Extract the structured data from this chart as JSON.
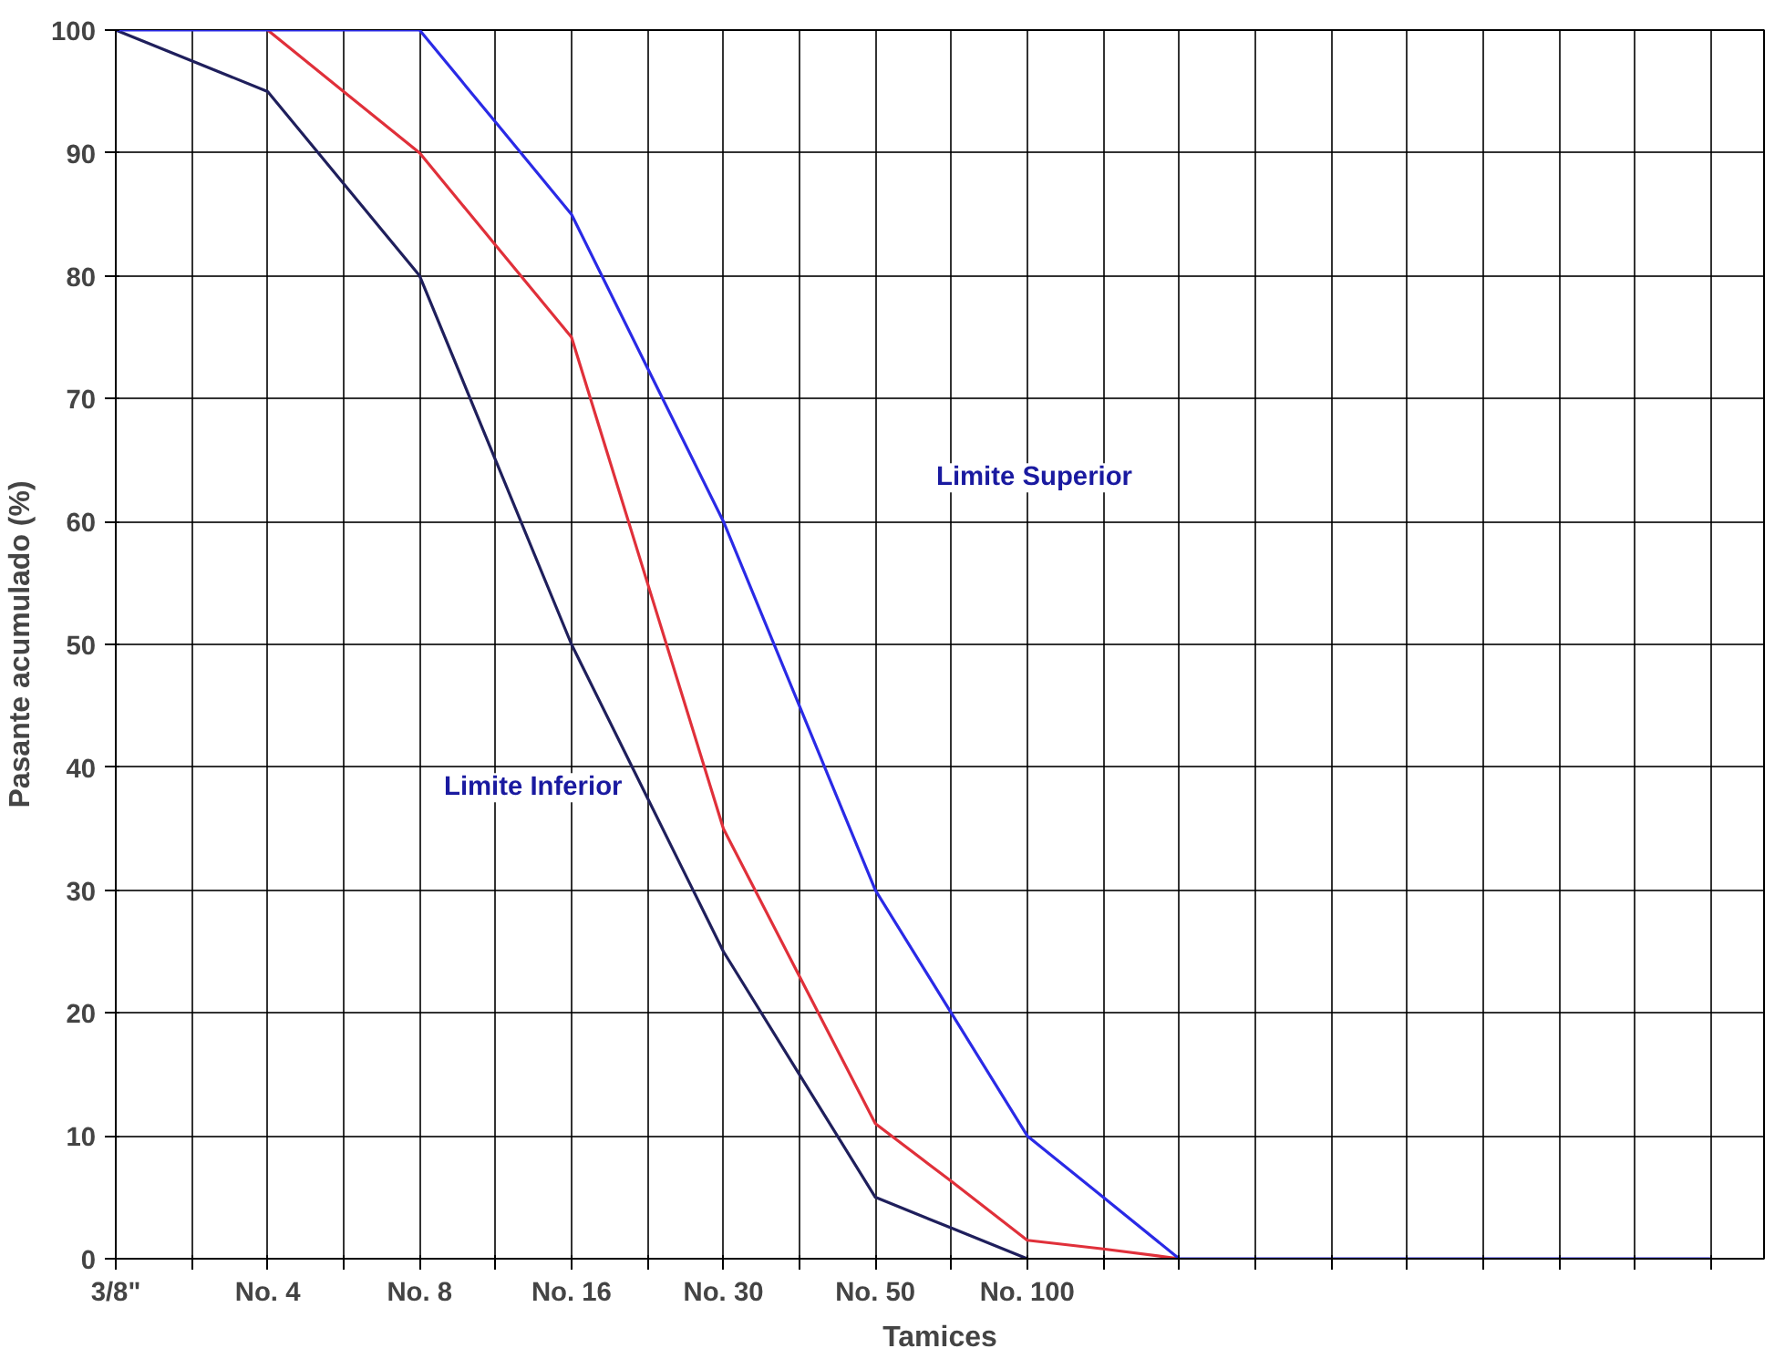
{
  "chart_data": {
    "type": "line",
    "xlabel": "Tamices",
    "ylabel": "Pasante acumulado (%)",
    "categories": [
      "3/8\"",
      null,
      "No. 4",
      null,
      "No. 8",
      null,
      "No. 16",
      null,
      "No. 30",
      null,
      "No. 50",
      null,
      "No. 100",
      null,
      null,
      null,
      null,
      null,
      null,
      null,
      null,
      null
    ],
    "ylim": [
      0,
      100
    ],
    "yticks": [
      0,
      10,
      20,
      30,
      40,
      50,
      60,
      70,
      80,
      90,
      100
    ],
    "grid": true,
    "series": [
      {
        "color": "#1f1f5c",
        "values": [
          100,
          97.5,
          95,
          87.5,
          80,
          65,
          50,
          37.5,
          25,
          15,
          5,
          2.5,
          0,
          null,
          null,
          null,
          null,
          null,
          null,
          null,
          null,
          null
        ]
      },
      {
        "color": "#e0303a",
        "values": [
          null,
          null,
          100,
          95,
          90,
          82.5,
          75,
          55,
          35,
          23,
          11,
          6.3,
          1.5,
          0.8,
          0,
          null,
          null,
          null,
          null,
          null,
          null,
          null
        ]
      },
      {
        "color": "#2a2ae6",
        "values": [
          100,
          100,
          100,
          100,
          100,
          92.5,
          85,
          72.5,
          60,
          45,
          30,
          20,
          10,
          5,
          0,
          0,
          0,
          0,
          0,
          0,
          0,
          0
        ]
      }
    ],
    "annotations": [
      "Limite Superior",
      "Limite Inferior"
    ]
  }
}
